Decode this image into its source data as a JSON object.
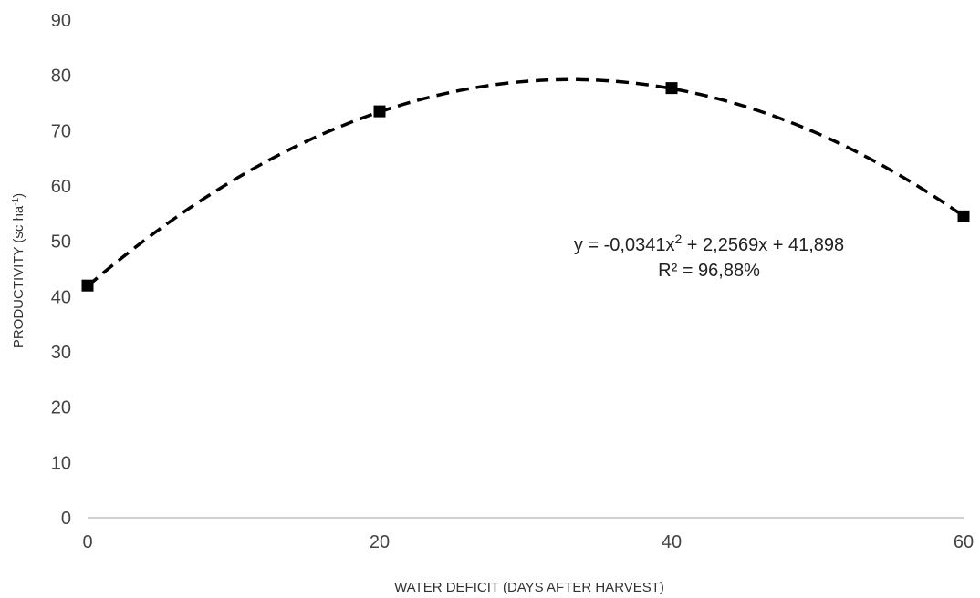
{
  "chart_data": {
    "type": "scatter",
    "xlabel": "WATER DEFICIT (DAYS AFTER HARVEST)",
    "ylabel": {
      "main": "PRODUCTIVITY (sc ha",
      "sup": "-1",
      "close": ")"
    },
    "xlim": [
      0,
      60
    ],
    "ylim": [
      0,
      90
    ],
    "x_ticks": [
      0,
      20,
      40,
      60
    ],
    "y_ticks": [
      0,
      10,
      20,
      30,
      40,
      50,
      60,
      70,
      80,
      90
    ],
    "grid": false,
    "points": [
      {
        "x": 0,
        "y": 42
      },
      {
        "x": 20,
        "y": 73.5
      },
      {
        "x": 40,
        "y": 77.7
      },
      {
        "x": 60,
        "y": 54.5
      }
    ],
    "trendline": {
      "type": "polynomial",
      "style": "dashed",
      "coefficients": [
        -0.0341,
        2.2569,
        41.898
      ]
    },
    "annotation": {
      "equation_main": "y = -0,0341x",
      "equation_exp": "2",
      "equation_rest": " + 2,2569x + 41,898",
      "r2": "R² = 96,88%"
    },
    "colors": {
      "marker": "#000000",
      "trendline": "#000000",
      "axis": "#bfbfbf"
    }
  }
}
